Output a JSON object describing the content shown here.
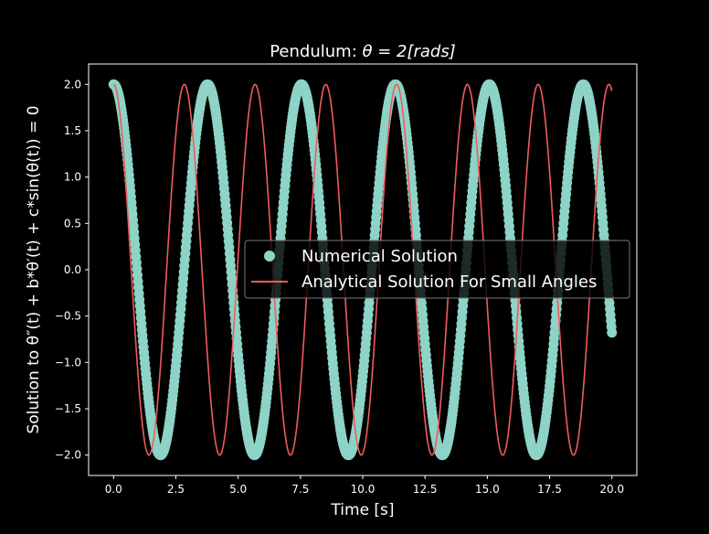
{
  "chart_data": {
    "type": "line",
    "title_prefix": "Pendulum: ",
    "title_math": "θ = 2[rads]",
    "xlabel": "Time [s]",
    "ylabel": "Solution to θ″(t) + b*θ′(t) + c*sin(θ(t)) = 0",
    "xlim": [
      -1.0,
      21.0
    ],
    "ylim": [
      -2.22,
      2.22
    ],
    "xticks": [
      0.0,
      2.5,
      5.0,
      7.5,
      10.0,
      12.5,
      15.0,
      17.5,
      20.0
    ],
    "xtick_labels": [
      "0.0",
      "2.5",
      "5.0",
      "7.5",
      "10.0",
      "12.5",
      "15.0",
      "17.5",
      "20.0"
    ],
    "yticks": [
      2.0,
      1.5,
      1.0,
      0.5,
      0.0,
      -0.5,
      -1.0,
      -1.5,
      -2.0
    ],
    "ytick_labels": [
      "2.0",
      "1.5",
      "1.0",
      "0.5",
      "0.0",
      "−0.5",
      "−1.0",
      "−1.5",
      "−2.0"
    ],
    "grid": false,
    "legend_position": "center-right",
    "series": [
      {
        "name": "Numerical Solution",
        "kind": "scatter",
        "color": "#8dd3c7",
        "amplitude": 2.0,
        "period": 3.77,
        "t_range": [
          0.0,
          20.0
        ]
      },
      {
        "name": "Analytical Solution For Small Angles",
        "kind": "line",
        "color": "#f05b5b",
        "amplitude": 2.0,
        "period": 2.84,
        "t_range": [
          0.0,
          20.0
        ]
      }
    ]
  }
}
